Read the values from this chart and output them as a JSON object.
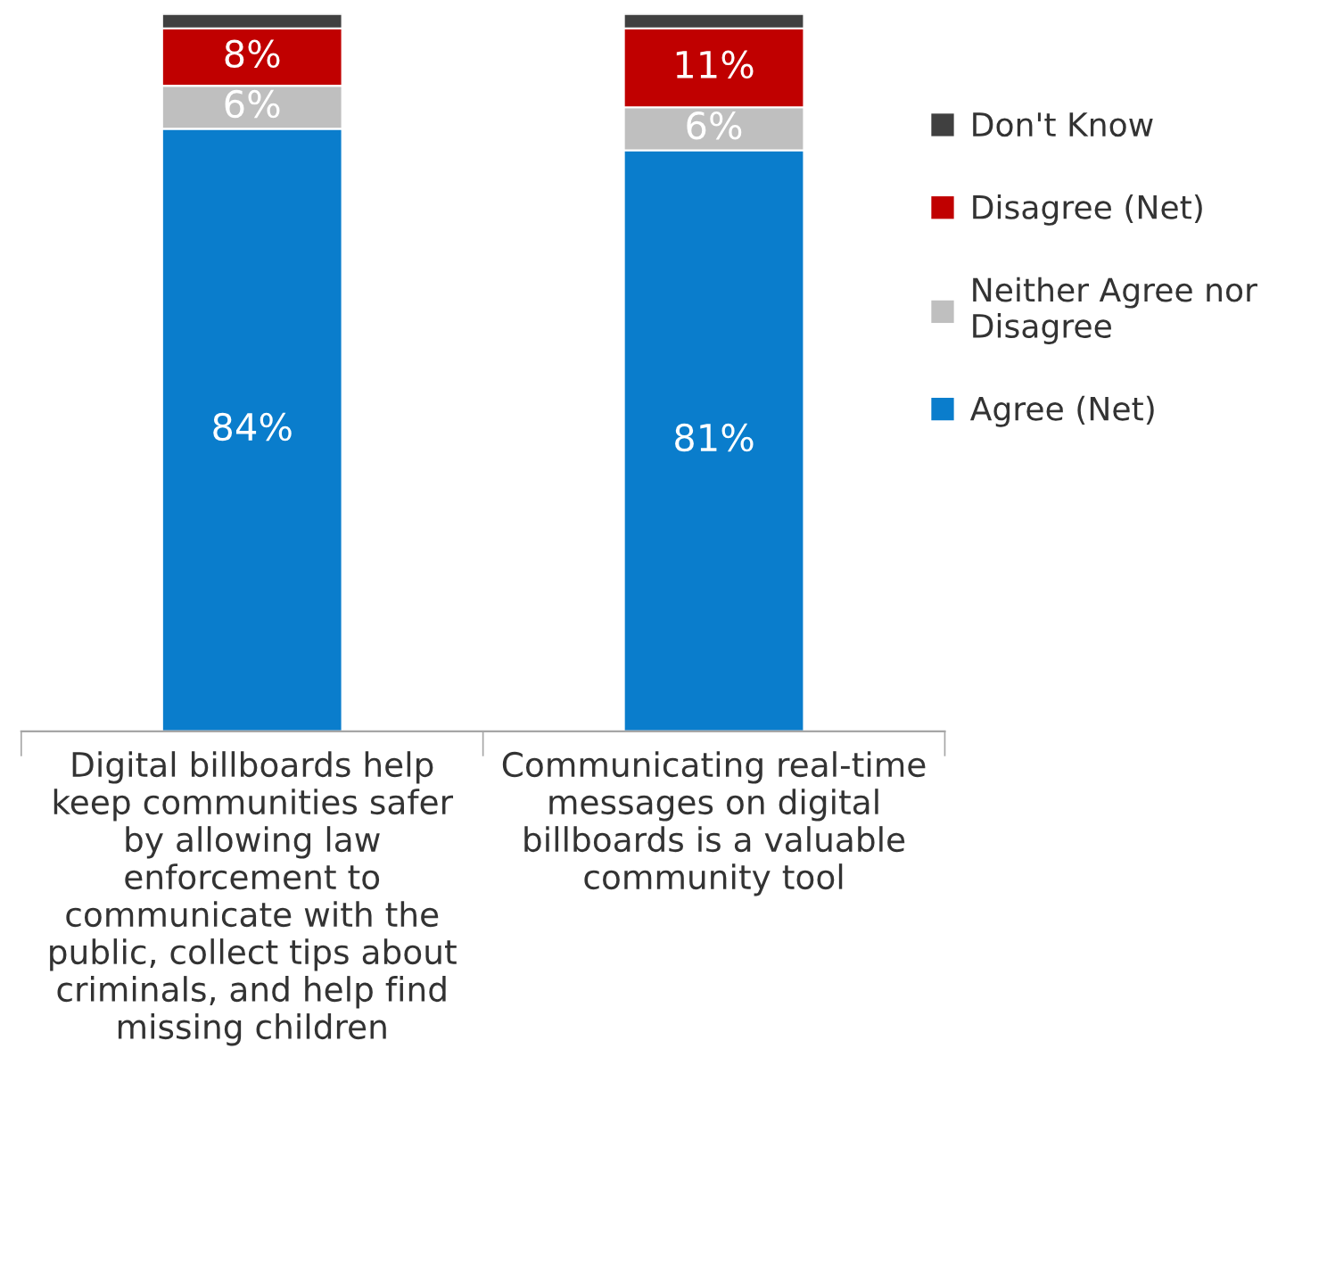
{
  "chart_data": {
    "type": "bar",
    "stacked": true,
    "legend": "right",
    "categories": [
      "Digital billboards help keep communities safer by allowing law enforcement to communicate with the public, collect tips about criminals, and help find missing children",
      "Communicating real-time messages on digital billboards is a valuable community tool"
    ],
    "series": [
      {
        "name": "Agree (Net)",
        "color": "#0a7dcc",
        "values": [
          84,
          81
        ],
        "value_labels": [
          "84%",
          "81%"
        ]
      },
      {
        "name": "Neither Agree nor Disagree",
        "color": "#bfbfbf",
        "values": [
          6,
          6
        ],
        "value_labels": [
          "6%",
          "6%"
        ]
      },
      {
        "name": "Disagree (Net)",
        "color": "#c00000",
        "values": [
          8,
          11
        ],
        "value_labels": [
          "8%",
          "11%"
        ]
      },
      {
        "name": "Don't Know",
        "color": "#404040",
        "values": [
          2,
          2
        ],
        "value_labels": [
          null,
          null
        ]
      }
    ]
  }
}
